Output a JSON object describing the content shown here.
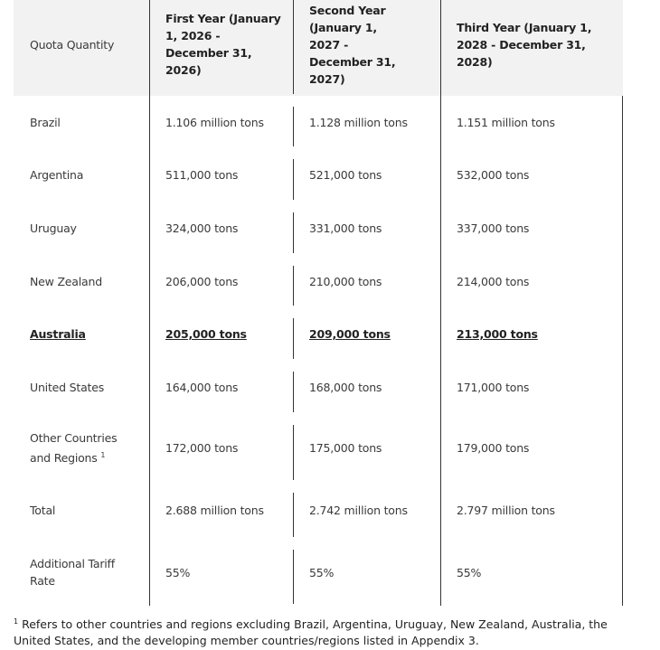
{
  "header": {
    "row_label": "Quota Quantity",
    "columns": [
      "First Year (January 1, 2026 - December 31, 2026)",
      "Second Year (January 1, 2027 - December 31, 2027)",
      "Third Year (January 1, 2028 - December 31, 2028)"
    ]
  },
  "rows": [
    {
      "label": "Brazil",
      "values": [
        "1.106 million tons",
        "1.128 million tons",
        "1.151 million tons"
      ]
    },
    {
      "label": "Argentina",
      "values": [
        "511,000 tons",
        "521,000 tons",
        "532,000 tons"
      ]
    },
    {
      "label": "Uruguay",
      "values": [
        "324,000 tons",
        "331,000 tons",
        "337,000 tons"
      ]
    },
    {
      "label": "New Zealand",
      "values": [
        "206,000 tons",
        "210,000 tons",
        "214,000 tons"
      ]
    },
    {
      "label": "Australia",
      "values": [
        "205,000 tons",
        "209,000 tons",
        "213,000 tons"
      ],
      "emphasis": true
    },
    {
      "label": "United States",
      "values": [
        "164,000 tons",
        "168,000 tons",
        "171,000 tons"
      ]
    },
    {
      "label": "Other Countries and Regions",
      "sup": "1",
      "values": [
        "172,000 tons",
        "175,000 tons",
        "179,000 tons"
      ]
    },
    {
      "label": "Total",
      "values": [
        "2.688 million tons",
        "2.742 million tons",
        "2.797 million tons"
      ]
    },
    {
      "label": "Additional Tariff Rate",
      "values": [
        "55%",
        "55%",
        "55%"
      ]
    }
  ],
  "footnote": {
    "marker": "1",
    "text": "Refers to other countries and regions excluding Brazil, Argentina, Uruguay, New Zealand, Australia, the United States, and the developing member countries/regions listed in Appendix 3."
  }
}
